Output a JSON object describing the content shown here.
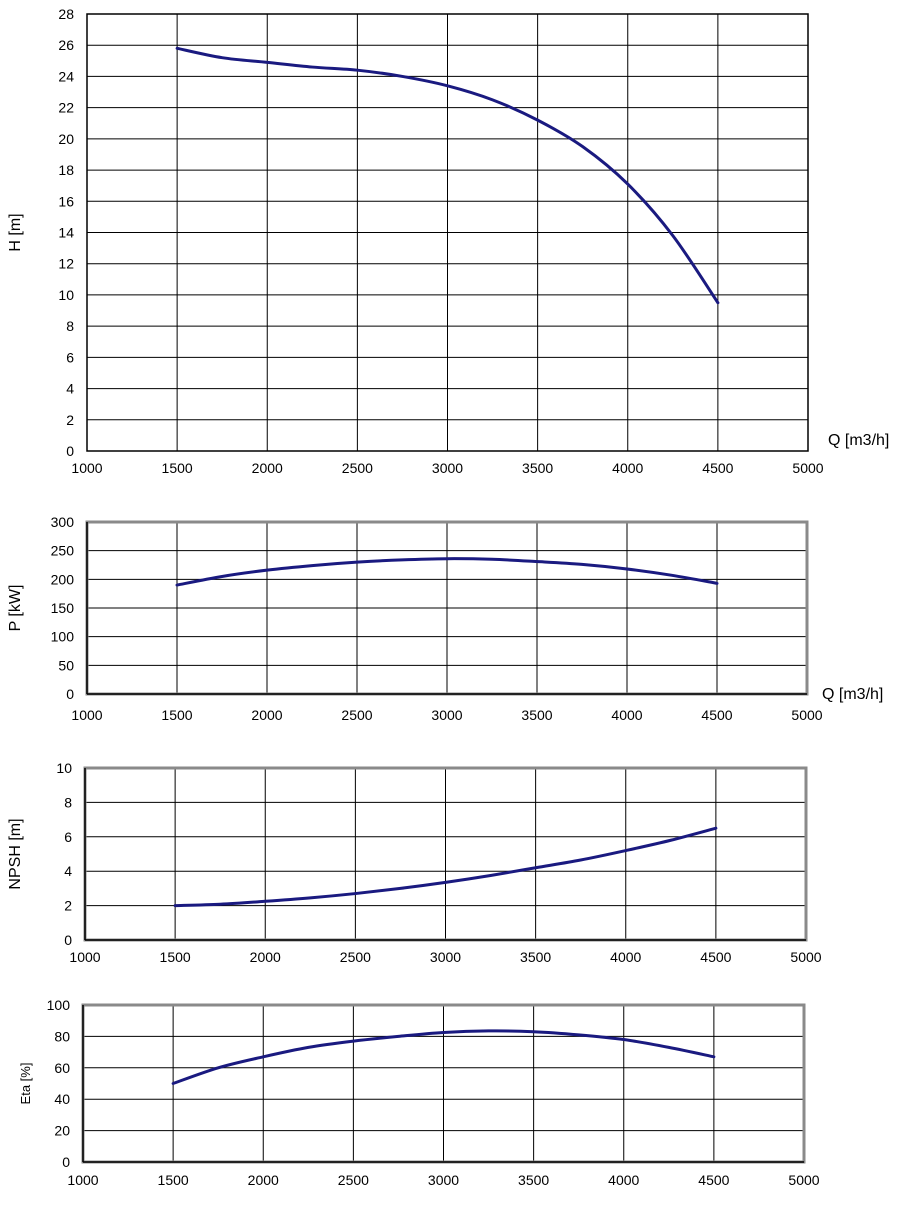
{
  "colors": {
    "curve": "#1a1a80",
    "grid": "#000000"
  },
  "chart_data": [
    {
      "type": "line",
      "ylabel": "H [m]",
      "xlabel": "Q [m3/h]",
      "xlim": [
        1000,
        5000
      ],
      "ylim": [
        0,
        28
      ],
      "xticks": [
        "1000",
        "1500",
        "2000",
        "2500",
        "3000",
        "3500",
        "4000",
        "4500",
        "5000"
      ],
      "yticks": [
        "0",
        "2",
        "4",
        "6",
        "8",
        "10",
        "12",
        "14",
        "16",
        "18",
        "20",
        "22",
        "24",
        "26",
        "28"
      ],
      "grid": true,
      "series": [
        {
          "x": [
            1500,
            1750,
            2000,
            2250,
            2500,
            2750,
            3000,
            3250,
            3500,
            3750,
            4000,
            4250,
            4500
          ],
          "y": [
            25.8,
            25.2,
            24.9,
            24.6,
            24.4,
            24.0,
            23.4,
            22.5,
            21.2,
            19.5,
            17.1,
            13.8,
            9.5
          ]
        }
      ]
    },
    {
      "type": "line",
      "ylabel": "P [kW]",
      "xlabel": "Q [m3/h]",
      "xlim": [
        1000,
        5000
      ],
      "ylim": [
        0,
        300
      ],
      "xticks": [
        "1000",
        "1500",
        "2000",
        "2500",
        "3000",
        "3500",
        "4000",
        "4500",
        "5000"
      ],
      "yticks": [
        "0",
        "50",
        "100",
        "150",
        "200",
        "250",
        "300"
      ],
      "grid": true,
      "series": [
        {
          "x": [
            1500,
            1750,
            2000,
            2250,
            2500,
            2750,
            3000,
            3250,
            3500,
            3750,
            4000,
            4250,
            4500
          ],
          "y": [
            190,
            205,
            216,
            224,
            230,
            234,
            236,
            235,
            231,
            226,
            218,
            207,
            193
          ]
        }
      ]
    },
    {
      "type": "line",
      "ylabel": "NPSH [m]",
      "xlabel": "",
      "xlim": [
        1000,
        5000
      ],
      "ylim": [
        0,
        10
      ],
      "xticks": [
        "1000",
        "1500",
        "2000",
        "2500",
        "3000",
        "3500",
        "4000",
        "4500",
        "5000"
      ],
      "yticks": [
        "0",
        "2",
        "4",
        "6",
        "8",
        "10"
      ],
      "grid": true,
      "series": [
        {
          "x": [
            1500,
            1750,
            2000,
            2250,
            2500,
            2750,
            3000,
            3250,
            3500,
            3750,
            4000,
            4250,
            4500
          ],
          "y": [
            2.0,
            2.08,
            2.25,
            2.45,
            2.7,
            3.0,
            3.35,
            3.75,
            4.2,
            4.65,
            5.2,
            5.8,
            6.5
          ]
        }
      ]
    },
    {
      "type": "line",
      "ylabel": "Eta [%]",
      "xlabel": "",
      "xlim": [
        1000,
        5000
      ],
      "ylim": [
        0,
        100
      ],
      "xticks": [
        "1000",
        "1500",
        "2000",
        "2500",
        "3000",
        "3500",
        "4000",
        "4500",
        "5000"
      ],
      "yticks": [
        "0",
        "20",
        "40",
        "60",
        "80",
        "100"
      ],
      "grid": true,
      "series": [
        {
          "x": [
            1500,
            1750,
            2000,
            2250,
            2500,
            2750,
            3000,
            3250,
            3500,
            3750,
            4000,
            4250,
            4500
          ],
          "y": [
            50,
            60,
            67,
            73,
            77,
            80,
            82.5,
            83.5,
            83,
            81,
            78,
            73,
            67
          ]
        }
      ]
    }
  ]
}
